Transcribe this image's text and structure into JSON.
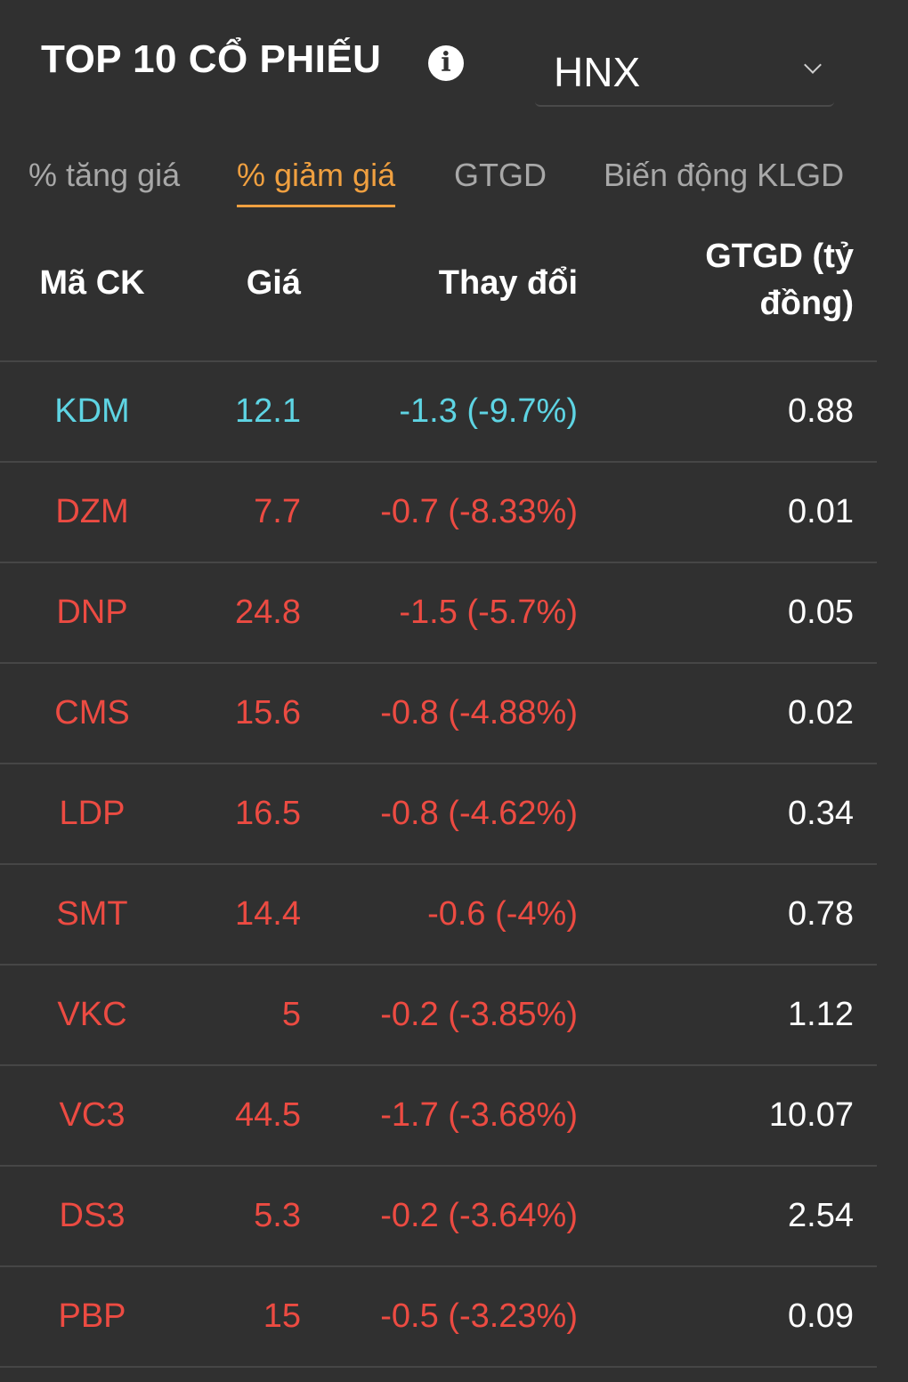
{
  "header": {
    "title": "TOP 10 CỔ PHIẾU",
    "info_icon": "i",
    "exchange": "HNX"
  },
  "tabs": [
    {
      "label": "% tăng giá",
      "active": false
    },
    {
      "label": "% giảm giá",
      "active": true
    },
    {
      "label": "GTGD",
      "active": false
    },
    {
      "label": "Biến động KLGD",
      "active": false
    }
  ],
  "table": {
    "headers": {
      "code": "Mã CK",
      "price": "Giá",
      "change": "Thay đổi",
      "value_line1": "GTGD (tỷ",
      "value_line2": "đồng)"
    },
    "rows": [
      {
        "code": "KDM",
        "price": "12.1",
        "change": "-1.3 (-9.7%)",
        "value": "0.88",
        "status": "floor"
      },
      {
        "code": "DZM",
        "price": "7.7",
        "change": "-0.7 (-8.33%)",
        "value": "0.01",
        "status": "down"
      },
      {
        "code": "DNP",
        "price": "24.8",
        "change": "-1.5 (-5.7%)",
        "value": "0.05",
        "status": "down"
      },
      {
        "code": "CMS",
        "price": "15.6",
        "change": "-0.8 (-4.88%)",
        "value": "0.02",
        "status": "down"
      },
      {
        "code": "LDP",
        "price": "16.5",
        "change": "-0.8 (-4.62%)",
        "value": "0.34",
        "status": "down"
      },
      {
        "code": "SMT",
        "price": "14.4",
        "change": "-0.6 (-4%)",
        "value": "0.78",
        "status": "down"
      },
      {
        "code": "VKC",
        "price": "5",
        "change": "-0.2 (-3.85%)",
        "value": "1.12",
        "status": "down"
      },
      {
        "code": "VC3",
        "price": "44.5",
        "change": "-1.7 (-3.68%)",
        "value": "10.07",
        "status": "down"
      },
      {
        "code": "DS3",
        "price": "5.3",
        "change": "-0.2 (-3.64%)",
        "value": "2.54",
        "status": "down"
      },
      {
        "code": "PBP",
        "price": "15",
        "change": "-0.5 (-3.23%)",
        "value": "0.09",
        "status": "down"
      }
    ]
  },
  "colors": {
    "background": "#303030",
    "down": "#ec4b42",
    "floor": "#5ed4e3",
    "active_tab": "#f0a040"
  }
}
